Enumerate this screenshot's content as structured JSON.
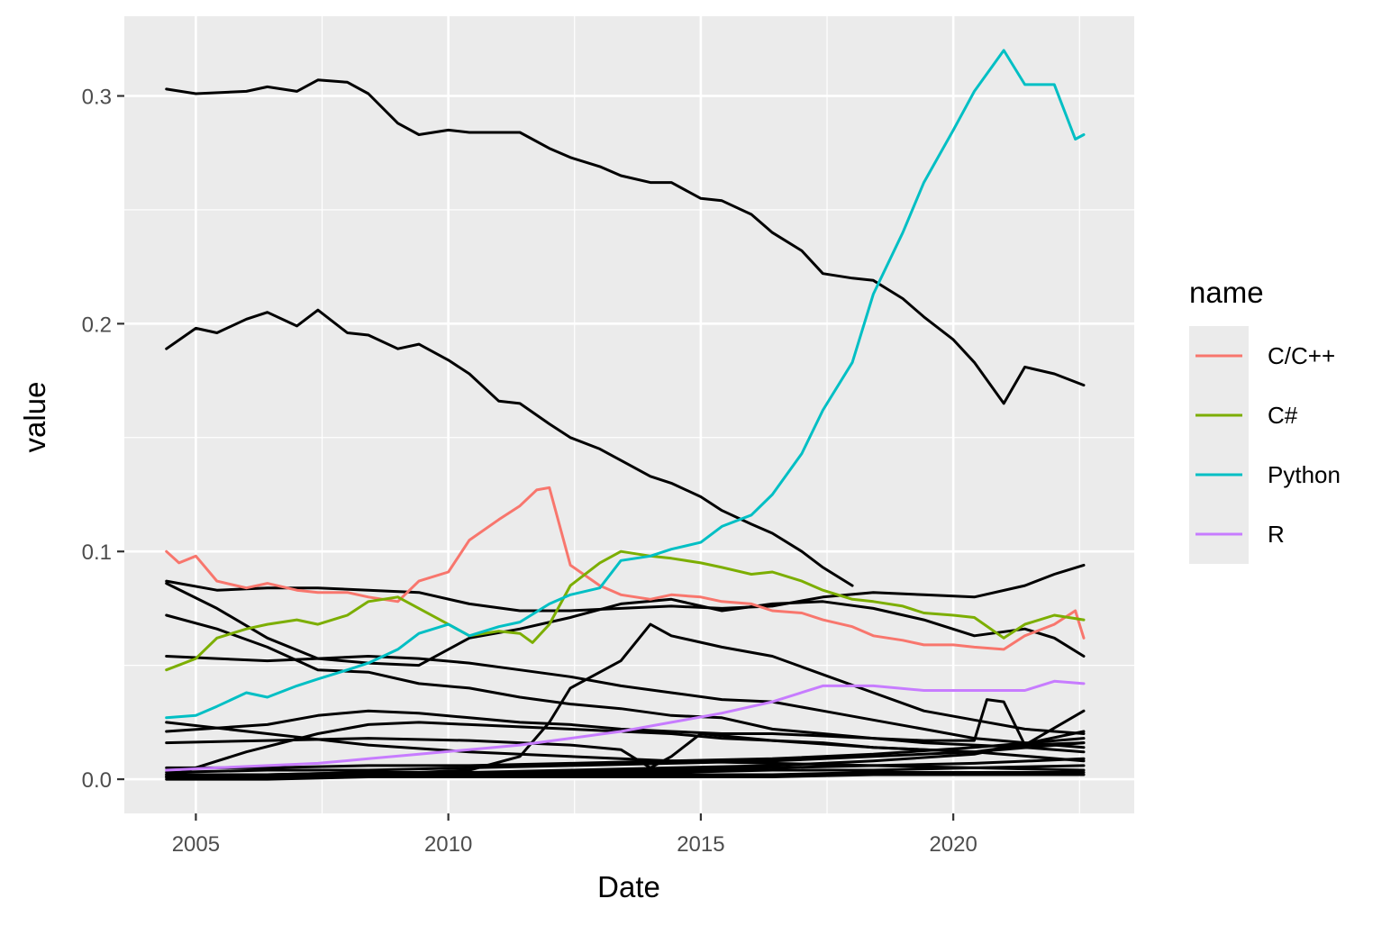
{
  "chart_data": {
    "type": "line",
    "xlabel": "Date",
    "ylabel": "value",
    "x_is_date": true,
    "x_ticks": [
      "2005",
      "2010",
      "2015",
      "2020"
    ],
    "y_ticks": [
      "0.0",
      "0.1",
      "0.2",
      "0.3"
    ],
    "xlim": [
      "2003-08",
      "2023-08"
    ],
    "ylim": [
      -0.015,
      0.335
    ],
    "grid": true,
    "legend": {
      "title": "name",
      "placement": "right",
      "entries": [
        "C/C++",
        "C#",
        "Python",
        "R"
      ]
    },
    "colors": {
      "C/C++": "#F8766D",
      "C#": "#7CAE00",
      "Python": "#00BFC4",
      "R": "#C77CFF",
      "other": "#000000",
      "panel": "#EBEBEB",
      "grid": "#FFFFFF"
    },
    "series": [
      {
        "name": "C/C++",
        "x": [
          "2004-06",
          "2004-09",
          "2005-01",
          "2005-06",
          "2006-01",
          "2006-06",
          "2007-01",
          "2007-06",
          "2008-01",
          "2008-06",
          "2009-01",
          "2009-06",
          "2010-01",
          "2010-06",
          "2011-01",
          "2011-06",
          "2011-10",
          "2012-01",
          "2012-06",
          "2013-01",
          "2013-06",
          "2014-01",
          "2014-06",
          "2015-01",
          "2015-06",
          "2016-01",
          "2016-06",
          "2017-01",
          "2017-06",
          "2018-01",
          "2018-06",
          "2019-01",
          "2019-06",
          "2020-01",
          "2020-06",
          "2021-01",
          "2021-06",
          "2022-01",
          "2022-06",
          "2022-08"
        ],
        "values": [
          0.1,
          0.095,
          0.098,
          0.087,
          0.084,
          0.086,
          0.083,
          0.082,
          0.082,
          0.08,
          0.078,
          0.087,
          0.091,
          0.105,
          0.114,
          0.12,
          0.127,
          0.128,
          0.094,
          0.085,
          0.081,
          0.079,
          0.081,
          0.08,
          0.078,
          0.077,
          0.074,
          0.073,
          0.07,
          0.067,
          0.063,
          0.061,
          0.059,
          0.059,
          0.058,
          0.057,
          0.063,
          0.068,
          0.074,
          0.062
        ]
      },
      {
        "name": "C#",
        "x": [
          "2004-06",
          "2005-01",
          "2005-06",
          "2006-01",
          "2006-06",
          "2007-01",
          "2007-06",
          "2008-01",
          "2008-06",
          "2009-01",
          "2009-06",
          "2010-01",
          "2010-06",
          "2011-01",
          "2011-06",
          "2011-09",
          "2012-01",
          "2012-06",
          "2013-01",
          "2013-06",
          "2014-01",
          "2014-06",
          "2015-01",
          "2015-06",
          "2016-01",
          "2016-06",
          "2017-01",
          "2017-06",
          "2018-01",
          "2018-06",
          "2019-01",
          "2019-06",
          "2020-01",
          "2020-06",
          "2021-01",
          "2021-06",
          "2022-01",
          "2022-08"
        ],
        "values": [
          0.048,
          0.053,
          0.062,
          0.066,
          0.068,
          0.07,
          0.068,
          0.072,
          0.078,
          0.08,
          0.075,
          0.068,
          0.063,
          0.065,
          0.064,
          0.06,
          0.068,
          0.085,
          0.095,
          0.1,
          0.098,
          0.097,
          0.095,
          0.093,
          0.09,
          0.091,
          0.087,
          0.083,
          0.079,
          0.078,
          0.076,
          0.073,
          0.072,
          0.071,
          0.062,
          0.068,
          0.072,
          0.07
        ]
      },
      {
        "name": "Python",
        "x": [
          "2004-06",
          "2005-01",
          "2005-06",
          "2006-01",
          "2006-06",
          "2007-01",
          "2007-06",
          "2008-01",
          "2008-06",
          "2009-01",
          "2009-06",
          "2010-01",
          "2010-06",
          "2011-01",
          "2011-06",
          "2012-01",
          "2012-06",
          "2013-01",
          "2013-06",
          "2014-01",
          "2014-06",
          "2015-01",
          "2015-06",
          "2016-01",
          "2016-06",
          "2017-01",
          "2017-06",
          "2018-01",
          "2018-06",
          "2019-01",
          "2019-06",
          "2020-01",
          "2020-06",
          "2021-01",
          "2021-06",
          "2022-01",
          "2022-06",
          "2022-08"
        ],
        "values": [
          0.027,
          0.028,
          0.032,
          0.038,
          0.036,
          0.041,
          0.044,
          0.048,
          0.051,
          0.057,
          0.064,
          0.068,
          0.063,
          0.067,
          0.069,
          0.077,
          0.081,
          0.084,
          0.096,
          0.098,
          0.101,
          0.104,
          0.111,
          0.116,
          0.125,
          0.143,
          0.162,
          0.183,
          0.213,
          0.24,
          0.262,
          0.285,
          0.302,
          0.32,
          0.305,
          0.305,
          0.281,
          0.283
        ]
      },
      {
        "name": "R",
        "x": [
          "2004-06",
          "2005-06",
          "2006-06",
          "2007-06",
          "2008-06",
          "2009-06",
          "2010-06",
          "2011-06",
          "2012-06",
          "2013-06",
          "2014-06",
          "2015-06",
          "2016-06",
          "2017-06",
          "2018-06",
          "2019-06",
          "2020-06",
          "2021-06",
          "2022-01",
          "2022-08"
        ],
        "values": [
          0.004,
          0.005,
          0.006,
          0.007,
          0.009,
          0.011,
          0.013,
          0.015,
          0.018,
          0.021,
          0.025,
          0.029,
          0.034,
          0.041,
          0.041,
          0.039,
          0.039,
          0.039,
          0.043,
          0.042
        ]
      },
      {
        "name": "",
        "x": [
          "2004-06",
          "2005-01",
          "2006-01",
          "2006-06",
          "2007-01",
          "2007-06",
          "2008-01",
          "2008-06",
          "2009-01",
          "2009-06",
          "2010-01",
          "2010-06",
          "2011-01",
          "2011-06",
          "2012-01",
          "2012-06",
          "2013-01",
          "2013-06",
          "2014-01",
          "2014-06",
          "2015-01",
          "2015-06",
          "2016-01",
          "2016-06",
          "2017-01",
          "2017-06",
          "2018-01",
          "2018-06",
          "2019-01",
          "2019-06",
          "2020-01",
          "2020-06",
          "2021-01",
          "2021-06",
          "2022-01",
          "2022-08"
        ],
        "values": [
          0.303,
          0.301,
          0.302,
          0.304,
          0.302,
          0.307,
          0.306,
          0.301,
          0.288,
          0.283,
          0.285,
          0.284,
          0.284,
          0.284,
          0.277,
          0.273,
          0.269,
          0.265,
          0.262,
          0.262,
          0.255,
          0.254,
          0.248,
          0.24,
          0.232,
          0.222,
          0.22,
          0.219,
          0.211,
          0.203,
          0.193,
          0.183,
          0.165,
          0.181,
          0.178,
          0.173
        ]
      },
      {
        "name": "",
        "x": [
          "2004-06",
          "2005-01",
          "2005-06",
          "2006-01",
          "2006-06",
          "2007-01",
          "2007-06",
          "2008-01",
          "2008-06",
          "2009-01",
          "2009-06",
          "2010-01",
          "2010-06",
          "2011-01",
          "2011-06",
          "2012-01",
          "2012-06",
          "2013-01",
          "2013-06",
          "2014-01",
          "2014-06",
          "2015-01",
          "2015-06",
          "2016-01",
          "2016-06",
          "2017-01",
          "2017-06",
          "2018-01"
        ],
        "values": [
          0.189,
          0.198,
          0.196,
          0.202,
          0.205,
          0.199,
          0.206,
          0.196,
          0.195,
          0.189,
          0.191,
          0.184,
          0.178,
          0.166,
          0.165,
          0.156,
          0.15,
          0.145,
          0.14,
          0.133,
          0.13,
          0.124,
          0.118,
          0.112,
          0.108,
          0.1,
          0.093,
          0.085
        ]
      },
      {
        "name": "",
        "x": [
          "2004-06",
          "2005-06",
          "2006-06",
          "2007-06",
          "2008-06",
          "2009-06",
          "2010-06",
          "2011-06",
          "2012-06",
          "2013-06",
          "2014-06",
          "2015-06",
          "2016-06",
          "2017-06",
          "2018-06",
          "2019-06",
          "2020-06",
          "2021-06",
          "2022-01",
          "2022-08"
        ],
        "values": [
          0.087,
          0.083,
          0.084,
          0.084,
          0.083,
          0.082,
          0.077,
          0.074,
          0.074,
          0.075,
          0.076,
          0.075,
          0.076,
          0.08,
          0.082,
          0.081,
          0.08,
          0.085,
          0.09,
          0.094
        ]
      },
      {
        "name": "",
        "x": [
          "2004-06",
          "2005-06",
          "2006-06",
          "2007-06",
          "2008-06",
          "2009-06",
          "2010-06",
          "2011-06",
          "2012-06",
          "2013-06",
          "2014-06",
          "2015-06",
          "2016-06",
          "2017-06",
          "2018-06",
          "2019-06",
          "2020-06",
          "2021-06",
          "2022-01",
          "2022-08"
        ],
        "values": [
          0.086,
          0.075,
          0.062,
          0.053,
          0.051,
          0.05,
          0.062,
          0.066,
          0.071,
          0.077,
          0.079,
          0.074,
          0.077,
          0.078,
          0.075,
          0.07,
          0.063,
          0.066,
          0.062,
          0.054
        ]
      },
      {
        "name": "",
        "x": [
          "2004-06",
          "2005-06",
          "2006-06",
          "2007-06",
          "2008-06",
          "2009-06",
          "2010-06",
          "2011-06",
          "2012-06",
          "2013-06",
          "2014-06",
          "2015-06",
          "2016-06",
          "2017-06",
          "2018-06",
          "2019-06",
          "2020-06",
          "2021-06",
          "2022-01",
          "2022-08"
        ],
        "values": [
          0.072,
          0.066,
          0.058,
          0.048,
          0.047,
          0.042,
          0.04,
          0.036,
          0.033,
          0.031,
          0.028,
          0.027,
          0.022,
          0.02,
          0.018,
          0.016,
          0.015,
          0.014,
          0.013,
          0.012
        ]
      },
      {
        "name": "",
        "x": [
          "2004-06",
          "2005-06",
          "2006-06",
          "2007-06",
          "2008-06",
          "2009-06",
          "2010-06",
          "2011-06",
          "2012-06",
          "2013-06",
          "2014-06",
          "2015-06",
          "2016-06",
          "2017-06",
          "2018-06",
          "2019-06",
          "2020-06",
          "2021-06",
          "2022-01",
          "2022-08"
        ],
        "values": [
          0.054,
          0.053,
          0.052,
          0.053,
          0.054,
          0.053,
          0.051,
          0.048,
          0.045,
          0.041,
          0.038,
          0.035,
          0.034,
          0.03,
          0.026,
          0.022,
          0.018,
          0.016,
          0.015,
          0.014
        ]
      },
      {
        "name": "",
        "x": [
          "2004-06",
          "2006-06",
          "2008-06",
          "2009-06",
          "2010-06",
          "2011-06",
          "2012-01",
          "2012-06",
          "2013-06",
          "2014-01",
          "2014-06",
          "2015-06",
          "2016-06",
          "2017-06",
          "2018-06",
          "2019-06",
          "2020-06",
          "2021-06",
          "2022-08"
        ],
        "values": [
          0.001,
          0.002,
          0.003,
          0.003,
          0.004,
          0.01,
          0.025,
          0.04,
          0.052,
          0.068,
          0.063,
          0.058,
          0.054,
          0.046,
          0.038,
          0.03,
          0.026,
          0.022,
          0.02
        ]
      },
      {
        "name": "",
        "x": [
          "2004-06",
          "2006-06",
          "2007-06",
          "2008-06",
          "2009-06",
          "2010-06",
          "2011-06",
          "2012-06",
          "2013-06",
          "2014-06",
          "2015-06",
          "2016-06",
          "2017-06",
          "2018-06",
          "2019-06",
          "2020-06",
          "2020-09",
          "2021-01",
          "2021-06",
          "2022-08"
        ],
        "values": [
          0.021,
          0.024,
          0.028,
          0.03,
          0.029,
          0.027,
          0.025,
          0.024,
          0.022,
          0.021,
          0.02,
          0.02,
          0.019,
          0.018,
          0.017,
          0.017,
          0.035,
          0.034,
          0.015,
          0.016
        ]
      },
      {
        "name": "",
        "x": [
          "2004-06",
          "2006-01",
          "2007-06",
          "2008-06",
          "2009-06",
          "2010-06",
          "2011-06",
          "2012-06",
          "2013-06",
          "2014-06",
          "2015-06",
          "2016-06",
          "2017-06",
          "2018-06",
          "2019-06",
          "2020-06",
          "2021-06",
          "2022-08"
        ],
        "values": [
          0.001,
          0.012,
          0.02,
          0.024,
          0.025,
          0.024,
          0.023,
          0.022,
          0.021,
          0.02,
          0.018,
          0.017,
          0.016,
          0.014,
          0.013,
          0.012,
          0.015,
          0.03
        ]
      },
      {
        "name": "",
        "x": [
          "2004-06",
          "2006-06",
          "2008-06",
          "2010-06",
          "2012-06",
          "2013-06",
          "2014-01",
          "2014-06",
          "2015-01",
          "2016-06",
          "2018-06",
          "2020-06",
          "2022-08"
        ],
        "values": [
          0.016,
          0.017,
          0.018,
          0.017,
          0.015,
          0.013,
          0.005,
          0.01,
          0.02,
          0.017,
          0.014,
          0.012,
          0.008
        ]
      },
      {
        "name": "",
        "x": [
          "2004-06",
          "2006-06",
          "2008-06",
          "2010-06",
          "2012-06",
          "2014-06",
          "2016-06",
          "2018-06",
          "2020-06",
          "2022-08"
        ],
        "values": [
          0.025,
          0.02,
          0.015,
          0.012,
          0.01,
          0.008,
          0.007,
          0.006,
          0.005,
          0.004
        ]
      },
      {
        "name": "",
        "x": [
          "2004-06",
          "2006-06",
          "2008-06",
          "2010-06",
          "2012-06",
          "2014-06",
          "2016-06",
          "2018-06",
          "2020-06",
          "2022-08"
        ],
        "values": [
          0.003,
          0.004,
          0.004,
          0.005,
          0.006,
          0.007,
          0.008,
          0.01,
          0.012,
          0.016
        ]
      },
      {
        "name": "",
        "x": [
          "2004-06",
          "2006-06",
          "2008-06",
          "2010-06",
          "2012-06",
          "2014-06",
          "2016-06",
          "2018-06",
          "2020-06",
          "2022-08"
        ],
        "values": [
          0.002,
          0.002,
          0.003,
          0.003,
          0.004,
          0.005,
          0.006,
          0.008,
          0.011,
          0.021
        ]
      },
      {
        "name": "",
        "x": [
          "2004-06",
          "2006-06",
          "2008-06",
          "2010-06",
          "2012-06",
          "2014-06",
          "2016-06",
          "2018-06",
          "2020-06",
          "2022-08"
        ],
        "values": [
          0.005,
          0.005,
          0.006,
          0.006,
          0.007,
          0.008,
          0.009,
          0.011,
          0.014,
          0.018
        ]
      },
      {
        "name": "",
        "x": [
          "2004-06",
          "2006-06",
          "2008-06",
          "2010-06",
          "2012-06",
          "2014-06",
          "2016-06",
          "2018-06",
          "2020-06",
          "2022-08"
        ],
        "values": [
          0.001,
          0.001,
          0.002,
          0.002,
          0.003,
          0.004,
          0.005,
          0.006,
          0.007,
          0.009
        ]
      },
      {
        "name": "",
        "x": [
          "2004-06",
          "2006-06",
          "2008-06",
          "2010-06",
          "2012-06",
          "2014-06",
          "2016-06",
          "2018-06",
          "2020-06",
          "2022-08"
        ],
        "values": [
          0.002,
          0.002,
          0.002,
          0.003,
          0.003,
          0.003,
          0.004,
          0.004,
          0.005,
          0.006
        ]
      },
      {
        "name": "",
        "x": [
          "2004-06",
          "2006-06",
          "2008-06",
          "2010-06",
          "2012-06",
          "2014-06",
          "2016-06",
          "2018-06",
          "2020-06",
          "2022-08"
        ],
        "values": [
          0.001,
          0.001,
          0.001,
          0.001,
          0.002,
          0.002,
          0.002,
          0.003,
          0.003,
          0.003
        ]
      },
      {
        "name": "",
        "x": [
          "2004-06",
          "2006-06",
          "2008-06",
          "2010-06",
          "2012-06",
          "2014-06",
          "2016-06",
          "2018-06",
          "2020-06",
          "2022-08"
        ],
        "values": [
          0.0,
          0.0,
          0.001,
          0.001,
          0.001,
          0.001,
          0.001,
          0.002,
          0.002,
          0.002
        ]
      }
    ]
  }
}
